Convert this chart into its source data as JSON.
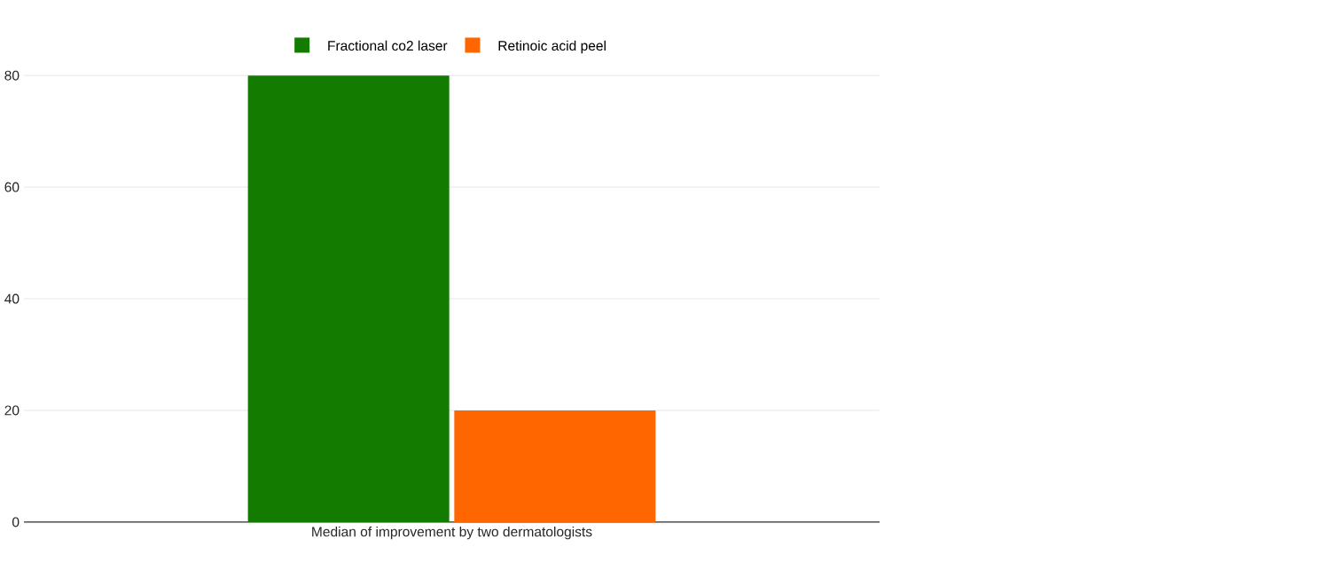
{
  "chart_data": {
    "type": "bar",
    "categories": [
      "Median of improvement by two dermatologists"
    ],
    "series": [
      {
        "name": "Fractional co2 laser",
        "color": "#137b00",
        "values": [
          80
        ]
      },
      {
        "name": "Retinoic acid peel",
        "color": "#ff6600",
        "values": [
          20
        ]
      }
    ],
    "ylim": [
      0,
      80
    ],
    "yticks": [
      0,
      20,
      40,
      60,
      80
    ],
    "grid": "y",
    "legend": "top"
  }
}
